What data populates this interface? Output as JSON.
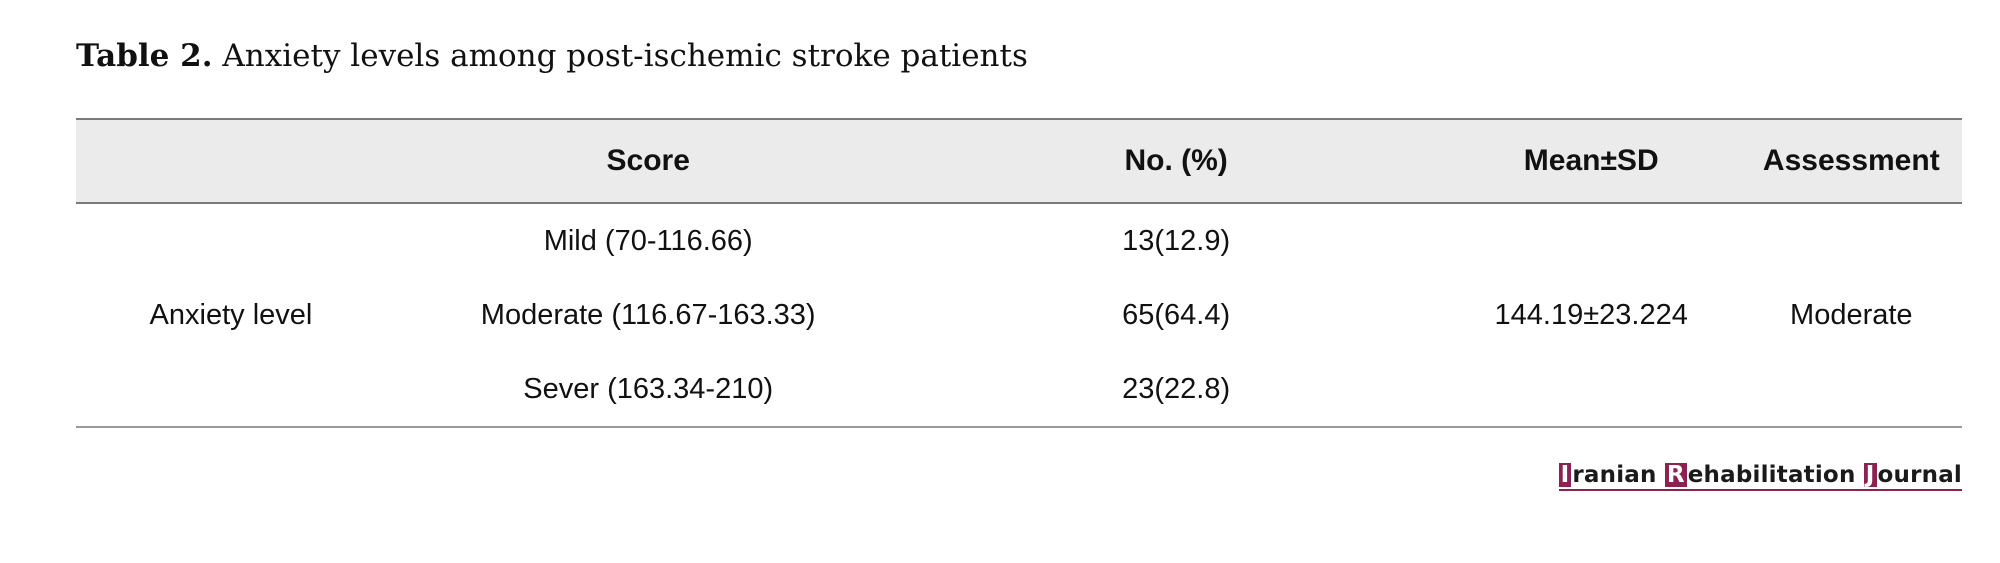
{
  "caption": {
    "label": "Table 2.",
    "text": "Anxiety levels among post-ischemic stroke patients"
  },
  "table": {
    "headers": [
      "",
      "Score",
      "No. (%)",
      "Mean±SD",
      "Assessment"
    ],
    "row_label": "Anxiety level",
    "rows": [
      {
        "score": "Mild (70-116.66)",
        "n_pct": "13(12.9)"
      },
      {
        "score": "Moderate (116.67-163.33)",
        "n_pct": "65(64.4)"
      },
      {
        "score": "Sever (163.34-210)",
        "n_pct": "23(22.8)"
      }
    ],
    "mean_sd": "144.19±23.224",
    "assessment": "Moderate"
  },
  "journal": {
    "initial1": "I",
    "rest1": "ranian ",
    "initial2": "R",
    "rest2": "ehabilitation ",
    "initial3": "J",
    "rest3": "ournal",
    "brand_color": "#8b2252"
  }
}
